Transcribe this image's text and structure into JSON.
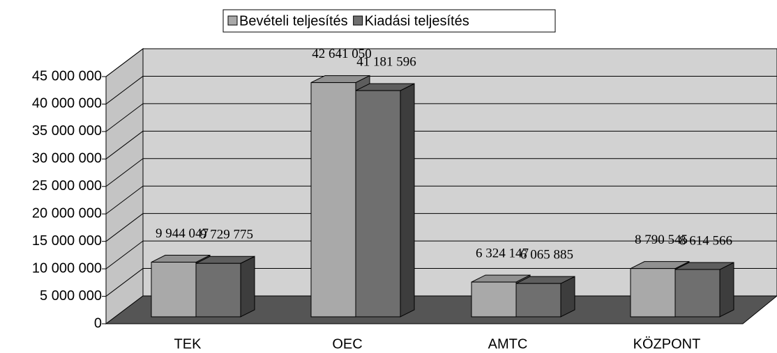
{
  "chart_data": {
    "type": "bar3d",
    "categories": [
      "TEK",
      "OEC",
      "AMTC",
      "KÖZPONT"
    ],
    "series": [
      {
        "name": "Bevételi teljesítés",
        "color": "#a9a9a9",
        "values": [
          9944047,
          42641050,
          6324147,
          8790545
        ],
        "value_labels": [
          "9 944 047",
          "42 641 050",
          "6 324 147",
          "8 790 545"
        ]
      },
      {
        "name": "Kiadási teljesítés",
        "color": "#6f6f6f",
        "values": [
          9729775,
          41181596,
          6065885,
          8614566
        ],
        "value_labels": [
          "9 729 775",
          "41 181 596",
          "6 065 885",
          "8 614 566"
        ]
      }
    ],
    "ylim": [
      0,
      45000000
    ],
    "yticks": [
      0,
      {
        "value": 5000000,
        "label": "5 000 000"
      },
      {
        "value": 10000000,
        "label": "10 000 000"
      },
      {
        "value": 15000000,
        "label": "15 000 000"
      },
      {
        "value": 20000000,
        "label": "20 000 000"
      },
      {
        "value": 25000000,
        "label": "25 000 000"
      },
      {
        "value": 30000000,
        "label": "30 000 000"
      },
      {
        "value": 35000000,
        "label": "35 000 000"
      },
      {
        "value": 40000000,
        "label": "40 000 000"
      },
      {
        "value": 45000000,
        "label": "45 000 000"
      }
    ],
    "grid": true,
    "legend": "top"
  }
}
